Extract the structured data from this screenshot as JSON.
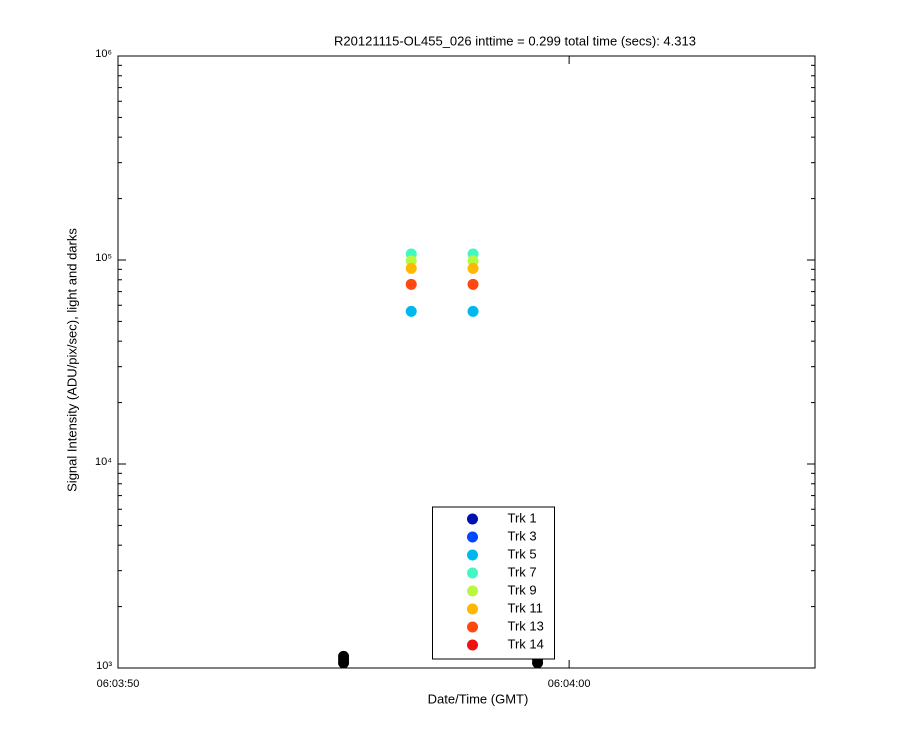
{
  "chart_data": {
    "type": "scatter",
    "title": "R20121115-OL455_026 inttime = 0.299 total time (secs): 4.313",
    "xlabel": "Date/Time (GMT)",
    "ylabel": "Signal Intensity (ADU/pix/sec), light and darks",
    "x": [
      21836.5,
      21837.87
    ],
    "series": [
      {
        "name": "Trk 1",
        "color": "#0010b0",
        "values": [
          null,
          null
        ]
      },
      {
        "name": "Trk 3",
        "color": "#0048ff",
        "values": [
          null,
          null
        ]
      },
      {
        "name": "Trk 5",
        "color": "#00b8f0",
        "values": [
          56000,
          56000
        ]
      },
      {
        "name": "Trk 7",
        "color": "#40f8c0",
        "values": [
          107000,
          107000
        ]
      },
      {
        "name": "Trk 9",
        "color": "#b8f840",
        "values": [
          99000,
          99000
        ]
      },
      {
        "name": "Trk 11",
        "color": "#ffb800",
        "values": [
          91000,
          91000
        ]
      },
      {
        "name": "Trk 13",
        "color": "#ff4810",
        "values": [
          76000,
          76000
        ]
      },
      {
        "name": "Trk 14",
        "color": "#f01010",
        "values": [
          null,
          null
        ]
      }
    ],
    "darks": {
      "color": "#000000",
      "x": [
        21835.0,
        21835.0,
        21835.0,
        21839.3,
        21839.3,
        21839.3
      ],
      "values": [
        1060,
        1100,
        1140,
        1060,
        1100,
        1140
      ]
    },
    "xlim": [
      21830,
      21845.45
    ],
    "xticks": [
      {
        "value": 21830,
        "label": "06:03:50"
      },
      {
        "value": 21840,
        "label": "06:04:00"
      }
    ],
    "ylim": [
      1000,
      1000000
    ],
    "yticks": [
      {
        "value": 1000,
        "label": "10³"
      },
      {
        "value": 10000,
        "label": "10⁴"
      },
      {
        "value": 100000,
        "label": "10⁵"
      },
      {
        "value": 1000000,
        "label": "10⁶"
      }
    ],
    "yminorticks": [
      2000,
      3000,
      4000,
      5000,
      6000,
      7000,
      8000,
      9000,
      20000,
      30000,
      40000,
      50000,
      60000,
      70000,
      80000,
      90000,
      200000,
      300000,
      400000,
      500000,
      600000,
      700000,
      800000,
      900000
    ],
    "ylog": true,
    "grid": false,
    "legend": "lower center"
  }
}
